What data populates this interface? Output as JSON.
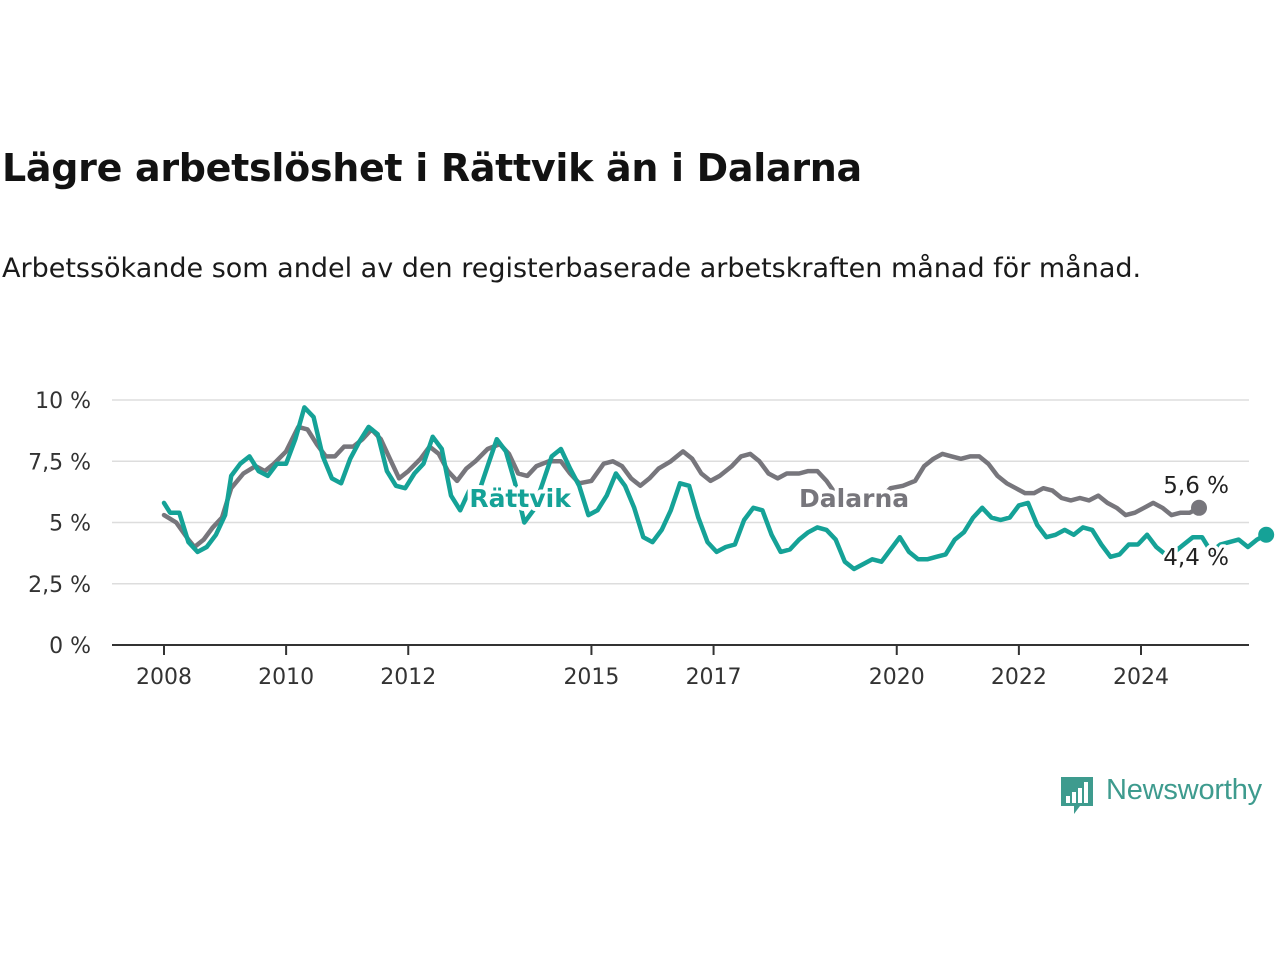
{
  "title": "Lägre arbetslöshet i Rättvik än i Dalarna",
  "subtitle": "Arbetssökande som andel av den registerbaserade arbetskraften månad för månad.",
  "brand": {
    "name": "Newsworthy",
    "color": "#3e9b8e"
  },
  "colors": {
    "dalarna": "#77767c",
    "rattvik": "#15a297",
    "grid": "#dddddd",
    "axis": "#333333"
  },
  "chart_data": {
    "type": "line",
    "x_unit": "year (decimal)",
    "y_unit": "%",
    "xlim": [
      2008,
      2025
    ],
    "ylim": [
      0,
      10
    ],
    "x_ticks": [
      2008,
      2010,
      2012,
      2015,
      2017,
      2020,
      2022,
      2024
    ],
    "x_tick_labels": [
      "2008",
      "2010",
      "2012",
      "2015",
      "2017",
      "2020",
      "2022",
      "2024"
    ],
    "y_ticks": [
      0,
      2.5,
      5,
      7.5,
      10
    ],
    "y_tick_labels": [
      "0 %",
      "2,5 %",
      "5 %",
      "7,5 %",
      "10 %"
    ],
    "grid": "horizontal",
    "legend": "inline labels",
    "series": [
      {
        "name": "Dalarna",
        "key": "dalarna",
        "label_position": [
          2018.4,
          6.0
        ],
        "end_label": "5,6 %",
        "points": [
          [
            2008.0,
            5.3
          ],
          [
            2008.2,
            5.0
          ],
          [
            2008.4,
            4.3
          ],
          [
            2008.5,
            4.0
          ],
          [
            2008.65,
            4.3
          ],
          [
            2008.8,
            4.8
          ],
          [
            2008.95,
            5.2
          ],
          [
            2009.1,
            6.4
          ],
          [
            2009.3,
            7.0
          ],
          [
            2009.5,
            7.3
          ],
          [
            2009.65,
            7.1
          ],
          [
            2009.8,
            7.4
          ],
          [
            2010.0,
            7.9
          ],
          [
            2010.2,
            8.9
          ],
          [
            2010.35,
            8.8
          ],
          [
            2010.5,
            8.2
          ],
          [
            2010.65,
            7.7
          ],
          [
            2010.8,
            7.7
          ],
          [
            2010.95,
            8.1
          ],
          [
            2011.1,
            8.1
          ],
          [
            2011.25,
            8.4
          ],
          [
            2011.4,
            8.8
          ],
          [
            2011.55,
            8.4
          ],
          [
            2011.7,
            7.6
          ],
          [
            2011.85,
            6.8
          ],
          [
            2012.0,
            7.1
          ],
          [
            2012.2,
            7.6
          ],
          [
            2012.35,
            8.1
          ],
          [
            2012.5,
            7.8
          ],
          [
            2012.65,
            7.1
          ],
          [
            2012.8,
            6.7
          ],
          [
            2012.95,
            7.2
          ],
          [
            2013.1,
            7.5
          ],
          [
            2013.3,
            8.0
          ],
          [
            2013.5,
            8.2
          ],
          [
            2013.65,
            7.8
          ],
          [
            2013.8,
            7.0
          ],
          [
            2013.95,
            6.9
          ],
          [
            2014.1,
            7.3
          ],
          [
            2014.3,
            7.5
          ],
          [
            2014.5,
            7.5
          ],
          [
            2014.65,
            7.0
          ],
          [
            2014.8,
            6.6
          ],
          [
            2015.0,
            6.7
          ],
          [
            2015.2,
            7.4
          ],
          [
            2015.35,
            7.5
          ],
          [
            2015.5,
            7.3
          ],
          [
            2015.65,
            6.8
          ],
          [
            2015.8,
            6.5
          ],
          [
            2015.95,
            6.8
          ],
          [
            2016.1,
            7.2
          ],
          [
            2016.3,
            7.5
          ],
          [
            2016.5,
            7.9
          ],
          [
            2016.65,
            7.6
          ],
          [
            2016.8,
            7.0
          ],
          [
            2016.95,
            6.7
          ],
          [
            2017.1,
            6.9
          ],
          [
            2017.3,
            7.3
          ],
          [
            2017.45,
            7.7
          ],
          [
            2017.6,
            7.8
          ],
          [
            2017.75,
            7.5
          ],
          [
            2017.9,
            7.0
          ],
          [
            2018.05,
            6.8
          ],
          [
            2018.2,
            7.0
          ],
          [
            2018.4,
            7.0
          ],
          [
            2018.55,
            7.1
          ],
          [
            2018.7,
            7.1
          ],
          [
            2018.85,
            6.7
          ],
          [
            2019.1,
            5.8
          ],
          [
            2019.4,
            5.7
          ],
          [
            2019.7,
            5.9
          ],
          [
            2019.9,
            6.4
          ],
          [
            2020.1,
            6.5
          ],
          [
            2020.3,
            6.7
          ],
          [
            2020.45,
            7.3
          ],
          [
            2020.6,
            7.6
          ],
          [
            2020.75,
            7.8
          ],
          [
            2020.9,
            7.7
          ],
          [
            2021.05,
            7.6
          ],
          [
            2021.2,
            7.7
          ],
          [
            2021.35,
            7.7
          ],
          [
            2021.5,
            7.4
          ],
          [
            2021.65,
            6.9
          ],
          [
            2021.8,
            6.6
          ],
          [
            2021.95,
            6.4
          ],
          [
            2022.1,
            6.2
          ],
          [
            2022.25,
            6.2
          ],
          [
            2022.4,
            6.4
          ],
          [
            2022.55,
            6.3
          ],
          [
            2022.7,
            6.0
          ],
          [
            2022.85,
            5.9
          ],
          [
            2023.0,
            6.0
          ],
          [
            2023.15,
            5.9
          ],
          [
            2023.3,
            6.1
          ],
          [
            2023.45,
            5.8
          ],
          [
            2023.6,
            5.6
          ],
          [
            2023.75,
            5.3
          ],
          [
            2023.9,
            5.4
          ],
          [
            2024.05,
            5.6
          ],
          [
            2024.2,
            5.8
          ],
          [
            2024.35,
            5.6
          ],
          [
            2024.5,
            5.3
          ],
          [
            2024.65,
            5.4
          ],
          [
            2024.8,
            5.4
          ],
          [
            2024.95,
            5.6
          ]
        ]
      },
      {
        "name": "Rättvik",
        "key": "rattvik",
        "label_position": [
          2013.0,
          6.0
        ],
        "end_label": "4,4 %",
        "points": [
          [
            2008.0,
            5.8
          ],
          [
            2008.1,
            5.4
          ],
          [
            2008.25,
            5.4
          ],
          [
            2008.4,
            4.2
          ],
          [
            2008.55,
            3.8
          ],
          [
            2008.7,
            4.0
          ],
          [
            2008.85,
            4.5
          ],
          [
            2009.0,
            5.3
          ],
          [
            2009.1,
            6.9
          ],
          [
            2009.25,
            7.4
          ],
          [
            2009.4,
            7.7
          ],
          [
            2009.55,
            7.1
          ],
          [
            2009.7,
            6.9
          ],
          [
            2009.85,
            7.4
          ],
          [
            2010.0,
            7.4
          ],
          [
            2010.15,
            8.4
          ],
          [
            2010.3,
            9.7
          ],
          [
            2010.45,
            9.3
          ],
          [
            2010.6,
            7.7
          ],
          [
            2010.75,
            6.8
          ],
          [
            2010.9,
            6.6
          ],
          [
            2011.05,
            7.6
          ],
          [
            2011.2,
            8.3
          ],
          [
            2011.35,
            8.9
          ],
          [
            2011.5,
            8.6
          ],
          [
            2011.65,
            7.1
          ],
          [
            2011.8,
            6.5
          ],
          [
            2011.95,
            6.4
          ],
          [
            2012.1,
            7.0
          ],
          [
            2012.25,
            7.4
          ],
          [
            2012.4,
            8.5
          ],
          [
            2012.55,
            8.0
          ],
          [
            2012.7,
            6.1
          ],
          [
            2012.85,
            5.5
          ],
          [
            2013.0,
            6.3
          ],
          [
            2013.15,
            6.2
          ],
          [
            2013.3,
            7.3
          ],
          [
            2013.45,
            8.4
          ],
          [
            2013.6,
            7.9
          ],
          [
            2013.75,
            6.6
          ],
          [
            2013.9,
            5.0
          ],
          [
            2014.05,
            5.5
          ],
          [
            2014.2,
            6.6
          ],
          [
            2014.35,
            7.7
          ],
          [
            2014.5,
            8.0
          ],
          [
            2014.65,
            7.2
          ],
          [
            2014.8,
            6.5
          ],
          [
            2014.95,
            5.3
          ],
          [
            2015.1,
            5.5
          ],
          [
            2015.25,
            6.1
          ],
          [
            2015.4,
            7.0
          ],
          [
            2015.55,
            6.5
          ],
          [
            2015.7,
            5.6
          ],
          [
            2015.85,
            4.4
          ],
          [
            2016.0,
            4.2
          ],
          [
            2016.15,
            4.7
          ],
          [
            2016.3,
            5.5
          ],
          [
            2016.45,
            6.6
          ],
          [
            2016.6,
            6.5
          ],
          [
            2016.75,
            5.2
          ],
          [
            2016.9,
            4.2
          ],
          [
            2017.05,
            3.8
          ],
          [
            2017.2,
            4.0
          ],
          [
            2017.35,
            4.1
          ],
          [
            2017.5,
            5.1
          ],
          [
            2017.65,
            5.6
          ],
          [
            2017.8,
            5.5
          ],
          [
            2017.95,
            4.5
          ],
          [
            2018.1,
            3.8
          ],
          [
            2018.25,
            3.9
          ],
          [
            2018.4,
            4.3
          ],
          [
            2018.55,
            4.6
          ],
          [
            2018.7,
            4.8
          ],
          [
            2018.85,
            4.7
          ],
          [
            2019.0,
            4.3
          ],
          [
            2019.15,
            3.4
          ],
          [
            2019.3,
            3.1
          ],
          [
            2019.45,
            3.3
          ],
          [
            2019.6,
            3.5
          ],
          [
            2019.75,
            3.4
          ],
          [
            2019.9,
            3.9
          ],
          [
            2020.05,
            4.4
          ],
          [
            2020.2,
            3.8
          ],
          [
            2020.35,
            3.5
          ],
          [
            2020.5,
            3.5
          ],
          [
            2020.65,
            3.6
          ],
          [
            2020.8,
            3.7
          ],
          [
            2020.95,
            4.3
          ],
          [
            2021.1,
            4.6
          ],
          [
            2021.25,
            5.2
          ],
          [
            2021.4,
            5.6
          ],
          [
            2021.55,
            5.2
          ],
          [
            2021.7,
            5.1
          ],
          [
            2021.85,
            5.2
          ],
          [
            2022.0,
            5.7
          ],
          [
            2022.15,
            5.8
          ],
          [
            2022.3,
            4.9
          ],
          [
            2022.45,
            4.4
          ],
          [
            2022.6,
            4.5
          ],
          [
            2022.75,
            4.7
          ],
          [
            2022.9,
            4.5
          ],
          [
            2023.05,
            4.8
          ],
          [
            2023.2,
            4.7
          ],
          [
            2023.35,
            4.1
          ],
          [
            2023.5,
            3.6
          ],
          [
            2023.65,
            3.7
          ],
          [
            2023.8,
            4.1
          ],
          [
            2023.95,
            4.1
          ],
          [
            2024.1,
            4.5
          ],
          [
            2024.25,
            4.0
          ],
          [
            2024.4,
            3.7
          ],
          [
            2024.55,
            3.8
          ],
          [
            2024.7,
            4.1
          ],
          [
            2024.85,
            4.4
          ],
          [
            2025.0,
            4.4
          ],
          [
            2025.15,
            3.8
          ],
          [
            2025.3,
            4.1
          ],
          [
            2025.45,
            4.2
          ],
          [
            2025.6,
            4.3
          ],
          [
            2025.75,
            4.0
          ],
          [
            2025.9,
            4.3
          ],
          [
            2026.05,
            4.5
          ]
        ]
      }
    ]
  }
}
